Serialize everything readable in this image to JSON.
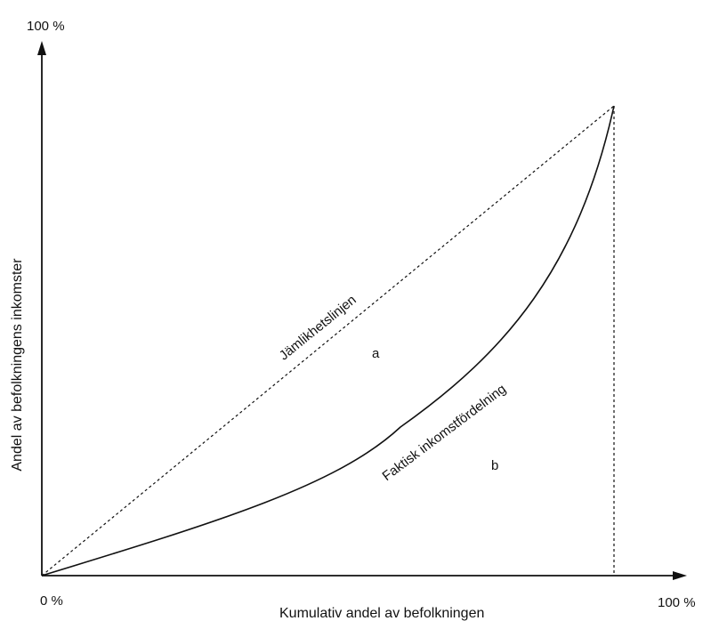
{
  "diagram": {
    "y_axis_top_label": "100 %",
    "origin_label": "0 %",
    "x_axis_end_label": "100 %",
    "x_axis_title": "Kumulativ andel av befolkningen",
    "y_axis_title": "Andel av befolkningens inkomster",
    "equality_line_label": "Jämlikhetslinjen",
    "curve_label": "Faktisk inkomstfördelning",
    "region_a_label": "a",
    "region_b_label": "b"
  },
  "colors": {
    "ink": "#111111",
    "background": "#ffffff"
  }
}
